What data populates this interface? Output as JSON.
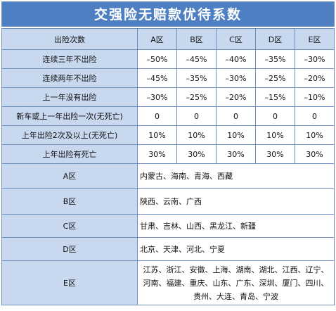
{
  "title": "交强险无赔款优待系数",
  "header": [
    "出险次数",
    "A区",
    "B区",
    "C区",
    "D区",
    "E区"
  ],
  "rows": [
    [
      "连续三年不出险",
      "–50%",
      "–45%",
      "–40%",
      "–35%",
      "–30%"
    ],
    [
      "连续两年不出险",
      "–45%",
      "–35%",
      "–30%",
      "–25%",
      "–20%"
    ],
    [
      "上一年没有出险",
      "–30%",
      "–25%",
      "–20%",
      "–15%",
      "–10%"
    ],
    [
      "新车或上一年出险一次(无死亡)",
      "0",
      "0",
      "0",
      "0",
      "0"
    ],
    [
      "上年出险2次及以上(无死亡)",
      "10%",
      "10%",
      "10%",
      "10%",
      "10%"
    ],
    [
      "上年出险有死亡",
      "30%",
      "30%",
      "30%",
      "30%",
      "30%"
    ]
  ],
  "regions": [
    {
      "name": "A区",
      "provinces": "内蒙古、海南、青海、西藏"
    },
    {
      "name": "B区",
      "provinces": "陕西、云南、广西"
    },
    {
      "name": "C区",
      "provinces": "甘肃、吉林、山西、黑龙江、新疆"
    },
    {
      "name": "D区",
      "provinces": "北京、天津、河北、宁夏"
    },
    {
      "name": "E区",
      "provinces": "江苏、浙江、安徽、上海、湖南、湖北、江西、辽宁、河南、福建、重庆、山东、广东、深圳、厦门、四川、贵州、大连、青岛、宁波"
    }
  ]
}
